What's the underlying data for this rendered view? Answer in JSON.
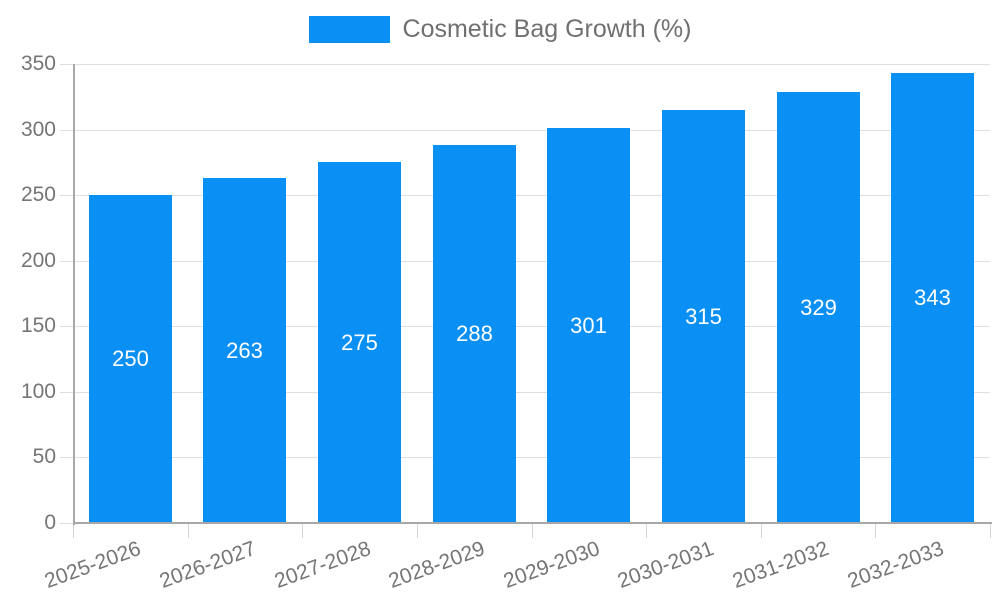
{
  "colors": {
    "bar": "#0a90f4",
    "grid": "#e0e0e0",
    "axis": "#a8a8a8",
    "tick": "#d4d4d4",
    "axis_text": "#757575",
    "legend_text": "#707070",
    "value_text": "#ffffff"
  },
  "legend": {
    "items": [
      {
        "label": "Cosmetic Bag Growth (%)",
        "swatch_color": "#0a90f4"
      }
    ]
  },
  "chart_data": {
    "type": "bar",
    "title": "",
    "legend_label": "Cosmetic Bag Growth (%)",
    "categories": [
      "2025-2026",
      "2026-2027",
      "2027-2028",
      "2028-2029",
      "2029-2030",
      "2030-2031",
      "2031-2032",
      "2032-2033"
    ],
    "series": [
      {
        "name": "Cosmetic Bag Growth (%)",
        "values": [
          250,
          263,
          275,
          288,
          301,
          315,
          329,
          343
        ]
      }
    ],
    "value_labels": [
      "250",
      "263",
      "275",
      "288",
      "301",
      "315",
      "329",
      "343"
    ],
    "value_label_position": "inside-center",
    "xlabel": "",
    "ylabel": "",
    "ylim": [
      0,
      350
    ],
    "ytick_step": 50,
    "ytick_labels": [
      "0",
      "50",
      "100",
      "150",
      "200",
      "250",
      "300",
      "350"
    ],
    "grid": "horizontal",
    "legend_position": "top-center",
    "x_label_rotation_deg": -20
  }
}
